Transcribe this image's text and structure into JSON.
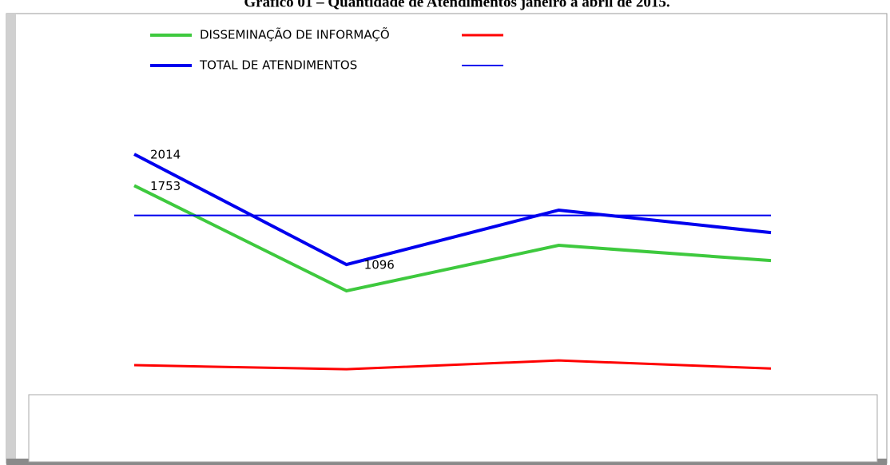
{
  "chart_data": {
    "type": "line",
    "title": "Gráfico 01 – Quantidade de Atendimentos janeiro a abril de 2015.",
    "categories": [
      null,
      null,
      null,
      null
    ],
    "series": [
      {
        "name": "DISSEMINAÇÃO DE INFORMAÇÕ",
        "color": "#3ec93e",
        "width": 4,
        "values": [
          1753,
          877,
          1256,
          1129
        ],
        "value_labels": [
          "1753",
          null,
          null,
          null
        ]
      },
      {
        "color": "#ff0000",
        "width": 3,
        "values": [
          259,
          225,
          298,
          231
        ]
      },
      {
        "name": "TOTAL DE ATENDIMENTOS",
        "color": "#0000ee",
        "width": 4,
        "values": [
          2014,
          1096,
          1549,
          1362
        ],
        "value_labels": [
          "2014",
          "1096",
          null,
          null
        ]
      },
      {
        "color": "#0000ee",
        "width": 2,
        "values": [
          1505,
          1505,
          1505,
          1505
        ]
      }
    ],
    "ylim": [
      0,
      2300
    ]
  }
}
